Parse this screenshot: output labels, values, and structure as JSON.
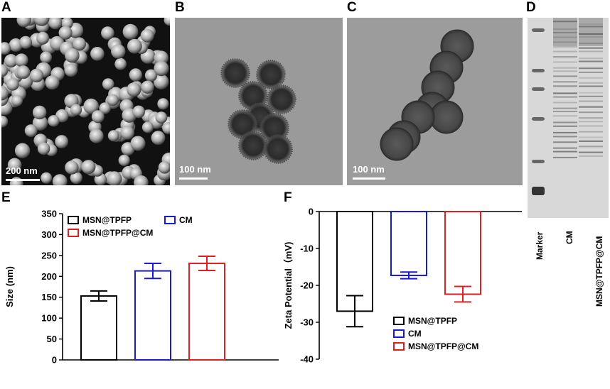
{
  "panels": {
    "A": {
      "letter": "A",
      "scale_label": "200 nm"
    },
    "B": {
      "letter": "B",
      "scale_label": "100 nm"
    },
    "C": {
      "letter": "C",
      "scale_label": "100 nm"
    },
    "D": {
      "letter": "D",
      "lanes": [
        "Marker",
        "CM",
        "MSN@TPFP@CM"
      ]
    },
    "E": {
      "letter": "E"
    },
    "F": {
      "letter": "F"
    }
  },
  "colors": {
    "MSN@TPFP": "#000000",
    "CM": "#1a1ad6",
    "MSN@TPFP@CM": "#e02020"
  },
  "chart_data": [
    {
      "panel": "E",
      "type": "bar",
      "categories": [
        "MSN@TPFP",
        "CM",
        "MSN@TPFP@CM"
      ],
      "values": [
        153,
        213,
        231
      ],
      "errors": [
        12,
        18,
        17
      ],
      "ylabel": "Size (nm)",
      "ylim": [
        0,
        350
      ],
      "yticks": [
        0,
        50,
        100,
        150,
        200,
        250,
        300,
        350
      ],
      "legend": [
        "MSN@TPFP",
        "CM",
        "MSN@TPFP@CM"
      ],
      "legend_position": "top"
    },
    {
      "panel": "F",
      "type": "bar",
      "categories": [
        "MSN@TPFP",
        "CM",
        "MSN@TPFP@CM"
      ],
      "values": [
        -27.0,
        -17.3,
        -22.4
      ],
      "errors": [
        4.2,
        0.9,
        2.1
      ],
      "ylabel": "Zeta Potential（mV)",
      "ylim": [
        -40,
        0
      ],
      "yticks": [
        0,
        -10,
        -20,
        -30,
        -40
      ],
      "legend": [
        "MSN@TPFP",
        "CM",
        "MSN@TPFP@CM"
      ],
      "legend_position": "bottom-right"
    }
  ]
}
